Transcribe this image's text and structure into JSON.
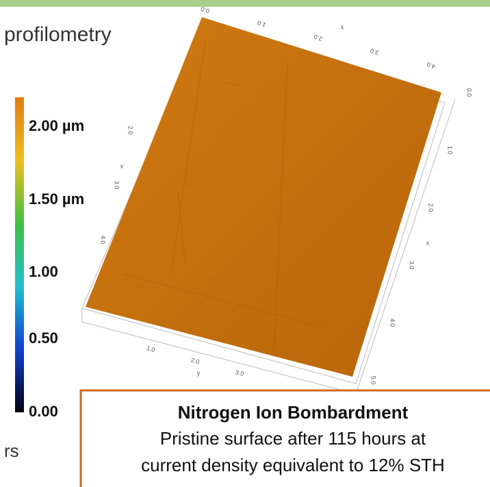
{
  "header": {
    "title": "profilometry"
  },
  "colorbar": {
    "labels": [
      "2.00 µm",
      "1.50 µm",
      "1.00",
      "0.50",
      "0.00"
    ]
  },
  "footer_fragment": "rs",
  "plot_axes": {
    "top_labels": [
      "0.0",
      "1.0",
      "2.0",
      "3.0",
      "4.0"
    ],
    "top_name": "x",
    "right_labels": [
      "0.0",
      "1.0",
      "2.0",
      "3.0",
      "4.0",
      "5.0"
    ],
    "right_name": "x",
    "left_labels": [
      "2.0",
      "3.0",
      "4.0"
    ],
    "left_name": "x",
    "bottom_labels": [
      "1.0",
      "2.0",
      "3.0"
    ],
    "bottom_name": "y"
  },
  "caption": {
    "title": "Nitrogen Ion Bombardment",
    "lines": [
      "Pristine surface after 115 hours at",
      "current density equivalent to 12% STH"
    ]
  }
}
